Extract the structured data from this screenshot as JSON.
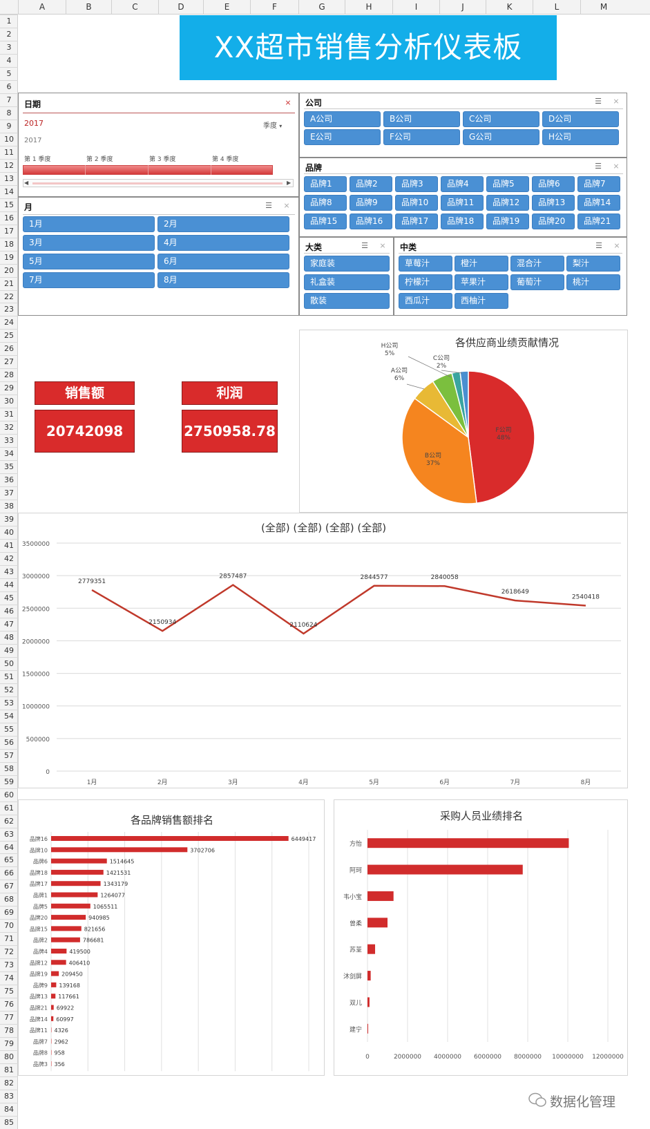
{
  "columns": [
    "A",
    "B",
    "C",
    "D",
    "E",
    "F",
    "G",
    "H",
    "I",
    "J",
    "K",
    "L",
    "M"
  ],
  "rows": [
    "1",
    "2",
    "3",
    "4",
    "5",
    "6",
    "7",
    "8",
    "9",
    "10",
    "11",
    "12",
    "13",
    "14",
    "15",
    "16",
    "17",
    "18",
    "19",
    "20",
    "21",
    "22",
    "23",
    "24",
    "25",
    "26",
    "27",
    "28",
    "29",
    "30",
    "31",
    "32",
    "33",
    "34",
    "35",
    "36",
    "37",
    "38",
    "39",
    "40",
    "41",
    "42",
    "43",
    "44",
    "45",
    "46",
    "47",
    "48",
    "49",
    "50",
    "51",
    "52",
    "53",
    "54",
    "55",
    "56",
    "57",
    "58",
    "59",
    "60",
    "61",
    "62",
    "63",
    "64",
    "65",
    "66",
    "67",
    "68",
    "69",
    "70",
    "71",
    "72",
    "73",
    "74",
    "75",
    "76",
    "77",
    "78",
    "79",
    "80",
    "81",
    "82",
    "83",
    "84",
    "85"
  ],
  "title": "XX超市销售分析仪表板",
  "date_slicer": {
    "header": "日期",
    "year_selected": "2017",
    "level": "季度",
    "year": "2017",
    "quarters": [
      "第 1 季度",
      "第 2 季度",
      "第 3 季度",
      "第 4 季度"
    ]
  },
  "month_slicer": {
    "header": "月",
    "items": [
      "1月",
      "2月",
      "3月",
      "4月",
      "5月",
      "6月",
      "7月",
      "8月"
    ]
  },
  "company_slicer": {
    "header": "公司",
    "items": [
      "A公司",
      "B公司",
      "C公司",
      "D公司",
      "E公司",
      "F公司",
      "G公司",
      "H公司"
    ]
  },
  "brand_slicer": {
    "header": "品牌",
    "items": [
      "品牌1",
      "品牌2",
      "品牌3",
      "品牌4",
      "品牌5",
      "品牌6",
      "品牌7",
      "品牌8",
      "品牌9",
      "品牌10",
      "品牌11",
      "品牌12",
      "品牌13",
      "品牌14",
      "品牌15",
      "品牌16",
      "品牌17",
      "品牌18",
      "品牌19",
      "品牌20",
      "品牌21"
    ]
  },
  "category_slicer": {
    "header": "大类",
    "items": [
      "家庭装",
      "礼盒装",
      "散装"
    ]
  },
  "subcategory_slicer": {
    "header": "中类",
    "items": [
      "草莓汁",
      "橙汁",
      "混合汁",
      "梨汁",
      "柠檬汁",
      "苹果汁",
      "葡萄汁",
      "桃汁",
      "西瓜汁",
      "西柚汁"
    ]
  },
  "kpis": {
    "sales_label": "销售额",
    "sales_value": "20742098",
    "profit_label": "利润",
    "profit_value": "2750958.78"
  },
  "watermark": "数据化管理",
  "chart_data": [
    {
      "type": "pie",
      "title": "各供应商业绩贡献情况",
      "slices": [
        {
          "label": "F公司",
          "value": 48,
          "pct_label": "48%",
          "color": "#d92b2b"
        },
        {
          "label": "B公司",
          "value": 37,
          "pct_label": "37%",
          "color": "#f5851f"
        },
        {
          "label": "A公司",
          "value": 6,
          "pct_label": "6%",
          "color": "#e8b935"
        },
        {
          "label": "H公司",
          "value": 5,
          "pct_label": "5%",
          "color": "#7bbf3e"
        },
        {
          "label": "C公司",
          "value": 2,
          "pct_label": "2%",
          "color": "#3aa5a0"
        },
        {
          "label": "",
          "value": 2,
          "pct_label": "",
          "color": "#4a8fd0"
        }
      ]
    },
    {
      "type": "line",
      "title": "(全部) (全部) (全部) (全部)",
      "categories": [
        "1月",
        "2月",
        "3月",
        "4月",
        "5月",
        "6月",
        "7月",
        "8月"
      ],
      "values": [
        2779351,
        2150934,
        2857487,
        2110624,
        2844577,
        2840058,
        2618649,
        2540418
      ],
      "ylim": [
        0,
        3500000
      ],
      "yticks": [
        "0",
        "500000",
        "1000000",
        "1500000",
        "2000000",
        "2500000",
        "3000000",
        "3500000"
      ],
      "color": "#c0392b",
      "grid": true
    },
    {
      "type": "bar",
      "orientation": "horizontal",
      "title": "各品牌销售额排名",
      "categories": [
        "品牌16",
        "品牌10",
        "品牌6",
        "品牌18",
        "品牌17",
        "品牌1",
        "品牌5",
        "品牌20",
        "品牌15",
        "品牌2",
        "品牌4",
        "品牌12",
        "品牌19",
        "品牌9",
        "品牌13",
        "品牌21",
        "品牌14",
        "品牌11",
        "品牌7",
        "品牌8",
        "品牌3"
      ],
      "values": [
        6449417,
        3702706,
        1514645,
        1421531,
        1343179,
        1264077,
        1065511,
        940985,
        821656,
        786681,
        419500,
        406410,
        209450,
        139168,
        117661,
        69922,
        60997,
        4326,
        2962,
        958,
        356
      ],
      "color": "#d12c2c",
      "grid": true
    },
    {
      "type": "bar",
      "orientation": "horizontal",
      "title": "采购人员业绩排名",
      "categories": [
        "方怡",
        "阿珂",
        "韦小宝",
        "曾柔",
        "苏荃",
        "沐剑屏",
        "双儿",
        "建宁"
      ],
      "values": [
        10050000,
        7750000,
        1300000,
        1000000,
        380000,
        160000,
        100000,
        30000
      ],
      "xlim": [
        0,
        12000000
      ],
      "xticks": [
        "0",
        "2000000",
        "4000000",
        "6000000",
        "8000000",
        "10000000",
        "12000000"
      ],
      "color": "#d12c2c",
      "grid": true
    }
  ]
}
